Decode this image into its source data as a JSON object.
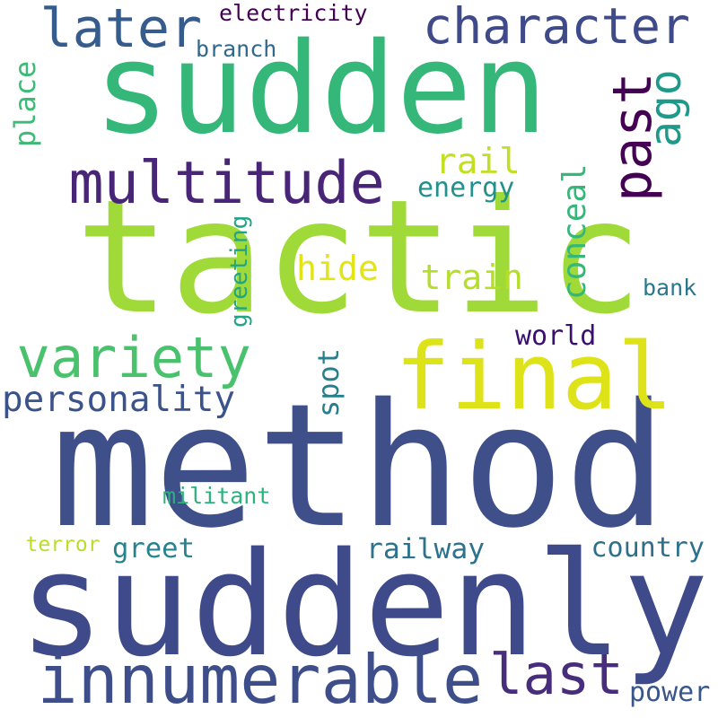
{
  "words": [
    {
      "text": "tactic",
      "color": "#a0da39"
    },
    {
      "text": "method",
      "color": "#3e4f8a"
    },
    {
      "text": "sudden",
      "color": "#35b779"
    },
    {
      "text": "suddenly",
      "color": "#3e4a89"
    },
    {
      "text": "final",
      "color": "#dde318"
    },
    {
      "text": "innumerable",
      "color": "#3d4e8a"
    },
    {
      "text": "multitude",
      "color": "#482576"
    },
    {
      "text": "character",
      "color": "#3e4a89"
    },
    {
      "text": "variety",
      "color": "#4ac16d"
    },
    {
      "text": "later",
      "color": "#365c8d"
    },
    {
      "text": "last",
      "color": "#472d7b"
    },
    {
      "text": "past",
      "color": "#440154"
    },
    {
      "text": "ago",
      "color": "#1f9a8a"
    },
    {
      "text": "personality",
      "color": "#3b528b"
    },
    {
      "text": "train",
      "color": "#b5de2b"
    },
    {
      "text": "hide",
      "color": "#e2e418"
    },
    {
      "text": "rail",
      "color": "#c2df23"
    },
    {
      "text": "conceal",
      "color": "#35b779"
    },
    {
      "text": "spot",
      "color": "#277f8e"
    },
    {
      "text": "place",
      "color": "#3bbb75"
    },
    {
      "text": "greeting",
      "color": "#20a386"
    },
    {
      "text": "energy",
      "color": "#21918c"
    },
    {
      "text": "world",
      "color": "#3b0f70"
    },
    {
      "text": "electricity",
      "color": "#440154"
    },
    {
      "text": "branch",
      "color": "#31688e"
    },
    {
      "text": "bank",
      "color": "#2a788e"
    },
    {
      "text": "militant",
      "color": "#2db27d"
    },
    {
      "text": "terror",
      "color": "#b8de29"
    },
    {
      "text": "greet",
      "color": "#26828e"
    },
    {
      "text": "railway",
      "color": "#2c728e"
    },
    {
      "text": "country",
      "color": "#2d708e"
    },
    {
      "text": "power",
      "color": "#39568c"
    }
  ]
}
